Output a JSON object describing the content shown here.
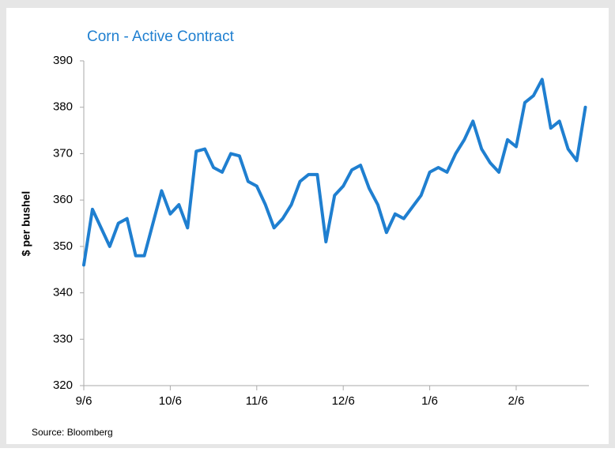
{
  "chart_data": {
    "type": "line",
    "title": "Corn - Active Contract",
    "y_label": "$ per bushel",
    "source": "Source: Bloomberg",
    "categories": [
      "9/6",
      null,
      null,
      null,
      null,
      null,
      null,
      null,
      null,
      null,
      "10/6",
      null,
      null,
      null,
      null,
      null,
      null,
      null,
      null,
      null,
      "11/6",
      null,
      null,
      null,
      null,
      null,
      null,
      null,
      null,
      null,
      "12/6",
      null,
      null,
      null,
      null,
      null,
      null,
      null,
      null,
      null,
      "1/6",
      null,
      null,
      null,
      null,
      null,
      null,
      null,
      null,
      null,
      "2/6",
      null,
      null,
      null,
      null,
      null,
      null,
      null,
      null
    ],
    "series": [
      {
        "name": "Corn",
        "color": "#1f7fd0",
        "values": [
          346,
          358,
          354,
          350,
          355,
          356,
          348,
          348,
          355,
          362,
          357,
          359,
          354,
          370.5,
          371,
          367,
          366,
          370,
          369.5,
          364,
          363,
          359,
          354,
          356,
          359,
          364,
          365.5,
          365.5,
          351,
          361,
          363,
          366.5,
          367.5,
          362.5,
          359,
          353,
          357,
          356,
          358.5,
          361,
          366,
          367,
          366,
          370,
          373,
          377,
          371,
          368,
          366,
          373,
          371.5,
          381,
          382.5,
          386,
          375.5,
          377,
          371,
          368.5,
          380
        ]
      }
    ],
    "ylim": [
      320,
      390
    ],
    "yticks": [
      320,
      330,
      340,
      350,
      360,
      370,
      380,
      390
    ],
    "grid": false
  }
}
